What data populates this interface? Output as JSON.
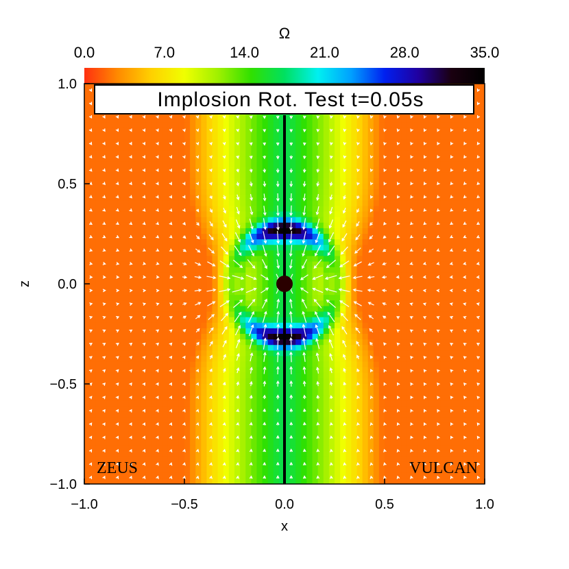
{
  "chart_data": {
    "type": "heatmap",
    "title": "Implosion Rot. Test t=0.05s",
    "xlabel": "x",
    "ylabel": "z",
    "xlim": [
      -1.0,
      1.0
    ],
    "ylim": [
      -1.0,
      1.0
    ],
    "x_ticks": [
      "−1.0",
      "−0.5",
      "0.0",
      "0.5",
      "1.0"
    ],
    "x_tick_values": [
      -1.0,
      -0.5,
      0.0,
      0.5,
      1.0
    ],
    "y_ticks": [
      "−1.0",
      "−0.5",
      "0.0",
      "0.5",
      "1.0"
    ],
    "y_tick_values": [
      -1.0,
      -0.5,
      0.0,
      0.5,
      1.0
    ],
    "colorbar": {
      "label": "Ω",
      "range": [
        0.0,
        35.0
      ],
      "ticks": [
        "0.0",
        "7.0",
        "14.0",
        "21.0",
        "28.0",
        "35.0"
      ],
      "tick_values": [
        0,
        7,
        14,
        21,
        28,
        35
      ],
      "colormap": [
        "#ff3010",
        "#ff8a00",
        "#ffd000",
        "#f0ff00",
        "#a0f000",
        "#30e000",
        "#00e060",
        "#00f0f0",
        "#00a0ff",
        "#0020f0",
        "#2000a0",
        "#1a0010",
        "#000000"
      ],
      "placement": "top"
    },
    "panels": {
      "left_label": "ZEUS",
      "right_label": "VULCAN",
      "divider_x": 0.0
    },
    "vectors": "velocity field arrows (white)",
    "sink_marker": {
      "x": 0.0,
      "z": 0.0
    }
  }
}
